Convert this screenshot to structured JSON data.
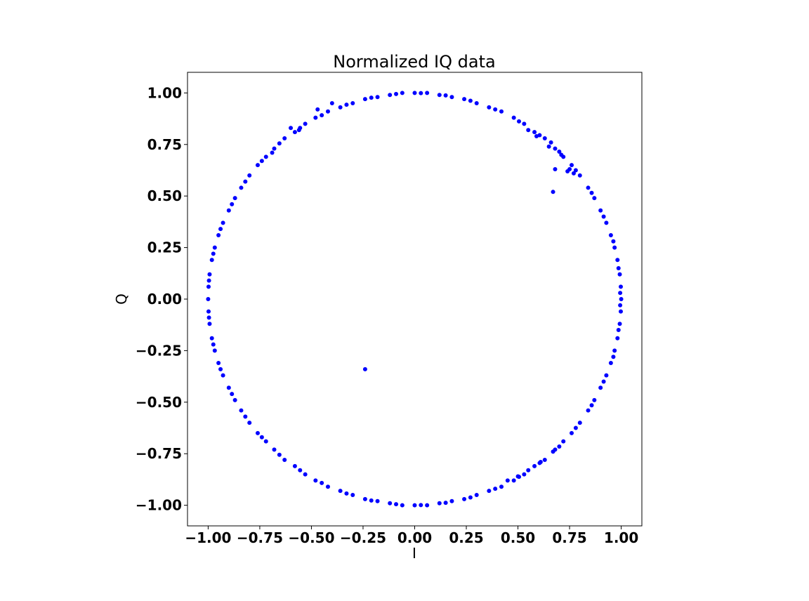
{
  "chart_data": {
    "type": "scatter",
    "title": "Normalized IQ data",
    "xlabel": "I",
    "ylabel": "Q",
    "xlim": [
      -1.1,
      1.1
    ],
    "ylim": [
      -1.1,
      1.1
    ],
    "xticks": [
      -1.0,
      -0.75,
      -0.5,
      -0.25,
      0.0,
      0.25,
      0.5,
      0.75,
      1.0
    ],
    "yticks": [
      -1.0,
      -0.75,
      -0.5,
      -0.25,
      0.0,
      0.25,
      0.5,
      0.75,
      1.0
    ],
    "xtick_labels": [
      "−1.00",
      "−0.75",
      "−0.50",
      "−0.25",
      "0.00",
      "0.25",
      "0.50",
      "0.75",
      "1.00"
    ],
    "ytick_labels": [
      "−1.00",
      "−0.75",
      "−0.50",
      "−0.25",
      "0.00",
      "0.25",
      "0.50",
      "0.75",
      "1.00"
    ],
    "grid": false,
    "marker_color": "#0000ff",
    "series": [
      {
        "points": [
          [
            1.0,
            0.0
          ],
          [
            0.998,
            0.06
          ],
          [
            0.993,
            0.12
          ],
          [
            0.982,
            0.19
          ],
          [
            0.968,
            0.25
          ],
          [
            0.95,
            0.31
          ],
          [
            0.928,
            0.37
          ],
          [
            0.9,
            0.43
          ],
          [
            0.87,
            0.49
          ],
          [
            0.84,
            0.54
          ],
          [
            0.8,
            0.6
          ],
          [
            0.76,
            0.65
          ],
          [
            0.72,
            0.69
          ],
          [
            0.68,
            0.73
          ],
          [
            0.63,
            0.78
          ],
          [
            0.58,
            0.81
          ],
          [
            0.53,
            0.85
          ],
          [
            0.48,
            0.88
          ],
          [
            0.42,
            0.91
          ],
          [
            0.36,
            0.93
          ],
          [
            0.3,
            0.95
          ],
          [
            0.24,
            0.97
          ],
          [
            0.18,
            0.98
          ],
          [
            0.12,
            0.99
          ],
          [
            0.06,
            1.0
          ],
          [
            0.0,
            1.0
          ],
          [
            -0.06,
            1.0
          ],
          [
            -0.12,
            0.99
          ],
          [
            -0.18,
            0.98
          ],
          [
            -0.24,
            0.97
          ],
          [
            -0.3,
            0.95
          ],
          [
            -0.36,
            0.93
          ],
          [
            -0.42,
            0.91
          ],
          [
            -0.48,
            0.88
          ],
          [
            -0.53,
            0.85
          ],
          [
            -0.58,
            0.81
          ],
          [
            -0.63,
            0.78
          ],
          [
            -0.68,
            0.73
          ],
          [
            -0.72,
            0.69
          ],
          [
            -0.76,
            0.65
          ],
          [
            -0.8,
            0.6
          ],
          [
            -0.84,
            0.54
          ],
          [
            -0.87,
            0.49
          ],
          [
            -0.9,
            0.43
          ],
          [
            -0.928,
            0.37
          ],
          [
            -0.95,
            0.31
          ],
          [
            -0.968,
            0.25
          ],
          [
            -0.982,
            0.19
          ],
          [
            -0.993,
            0.12
          ],
          [
            -0.998,
            0.06
          ],
          [
            -1.0,
            0.0
          ],
          [
            -0.998,
            -0.06
          ],
          [
            -0.993,
            -0.12
          ],
          [
            -0.982,
            -0.19
          ],
          [
            -0.968,
            -0.25
          ],
          [
            -0.95,
            -0.31
          ],
          [
            -0.928,
            -0.37
          ],
          [
            -0.9,
            -0.43
          ],
          [
            -0.87,
            -0.49
          ],
          [
            -0.84,
            -0.54
          ],
          [
            -0.8,
            -0.6
          ],
          [
            -0.76,
            -0.65
          ],
          [
            -0.72,
            -0.69
          ],
          [
            -0.68,
            -0.73
          ],
          [
            -0.63,
            -0.78
          ],
          [
            -0.58,
            -0.81
          ],
          [
            -0.53,
            -0.85
          ],
          [
            -0.48,
            -0.88
          ],
          [
            -0.42,
            -0.91
          ],
          [
            -0.36,
            -0.93
          ],
          [
            -0.3,
            -0.95
          ],
          [
            -0.24,
            -0.97
          ],
          [
            -0.18,
            -0.98
          ],
          [
            -0.12,
            -0.99
          ],
          [
            -0.06,
            -1.0
          ],
          [
            0.0,
            -1.0
          ],
          [
            0.06,
            -1.0
          ],
          [
            0.12,
            -0.99
          ],
          [
            0.18,
            -0.98
          ],
          [
            0.24,
            -0.97
          ],
          [
            0.3,
            -0.95
          ],
          [
            0.36,
            -0.93
          ],
          [
            0.42,
            -0.91
          ],
          [
            0.48,
            -0.88
          ],
          [
            0.53,
            -0.85
          ],
          [
            0.58,
            -0.81
          ],
          [
            0.63,
            -0.78
          ],
          [
            0.68,
            -0.73
          ],
          [
            0.72,
            -0.69
          ],
          [
            0.76,
            -0.65
          ],
          [
            0.8,
            -0.6
          ],
          [
            0.84,
            -0.54
          ],
          [
            0.87,
            -0.49
          ],
          [
            0.9,
            -0.43
          ],
          [
            0.928,
            -0.37
          ],
          [
            0.95,
            -0.31
          ],
          [
            0.968,
            -0.25
          ],
          [
            0.982,
            -0.19
          ],
          [
            0.993,
            -0.12
          ],
          [
            0.998,
            -0.06
          ],
          [
            0.995,
            0.03
          ],
          [
            0.987,
            0.15
          ],
          [
            0.962,
            0.28
          ],
          [
            0.915,
            0.4
          ],
          [
            0.857,
            0.515
          ],
          [
            0.78,
            0.625
          ],
          [
            0.7,
            0.715
          ],
          [
            0.605,
            0.795
          ],
          [
            0.505,
            0.862
          ],
          [
            0.39,
            0.92
          ],
          [
            0.27,
            0.962
          ],
          [
            0.15,
            0.988
          ],
          [
            0.03,
            0.999
          ],
          [
            -0.09,
            0.995
          ],
          [
            -0.21,
            0.977
          ],
          [
            -0.33,
            0.943
          ],
          [
            -0.45,
            0.892
          ],
          [
            -0.555,
            0.83
          ],
          [
            -0.655,
            0.755
          ],
          [
            -0.74,
            0.67
          ],
          [
            -0.82,
            0.57
          ],
          [
            -0.885,
            0.46
          ],
          [
            -0.94,
            0.34
          ],
          [
            -0.975,
            0.22
          ],
          [
            -0.996,
            0.09
          ],
          [
            -0.996,
            -0.09
          ],
          [
            -0.975,
            -0.22
          ],
          [
            -0.94,
            -0.34
          ],
          [
            -0.885,
            -0.46
          ],
          [
            -0.82,
            -0.57
          ],
          [
            -0.74,
            -0.67
          ],
          [
            -0.655,
            -0.755
          ],
          [
            -0.555,
            -0.83
          ],
          [
            -0.45,
            -0.892
          ],
          [
            -0.33,
            -0.943
          ],
          [
            -0.21,
            -0.977
          ],
          [
            -0.09,
            -0.995
          ],
          [
            0.03,
            -0.999
          ],
          [
            0.15,
            -0.988
          ],
          [
            0.27,
            -0.962
          ],
          [
            0.39,
            -0.92
          ],
          [
            0.505,
            -0.862
          ],
          [
            0.605,
            -0.795
          ],
          [
            0.7,
            -0.715
          ],
          [
            0.78,
            -0.625
          ],
          [
            0.857,
            -0.515
          ],
          [
            0.915,
            -0.4
          ],
          [
            0.962,
            -0.28
          ],
          [
            0.987,
            -0.15
          ],
          [
            0.995,
            -0.03
          ],
          [
            0.59,
            0.79
          ],
          [
            0.65,
            0.74
          ],
          [
            0.71,
            0.7
          ],
          [
            0.75,
            0.63
          ],
          [
            0.66,
            0.76
          ],
          [
            0.74,
            0.62
          ],
          [
            0.77,
            0.61
          ],
          [
            0.55,
            0.82
          ],
          [
            -0.56,
            0.82
          ],
          [
            -0.69,
            0.71
          ],
          [
            0.45,
            -0.88
          ],
          [
            0.55,
            -0.83
          ],
          [
            0.61,
            -0.79
          ],
          [
            0.67,
            -0.74
          ],
          [
            0.5,
            -0.86
          ],
          [
            -0.4,
            0.95
          ],
          [
            -0.47,
            0.92
          ],
          [
            -0.6,
            0.83
          ],
          [
            0.67,
            0.52
          ],
          [
            0.68,
            0.63
          ],
          [
            -0.24,
            -0.34
          ]
        ]
      }
    ]
  }
}
